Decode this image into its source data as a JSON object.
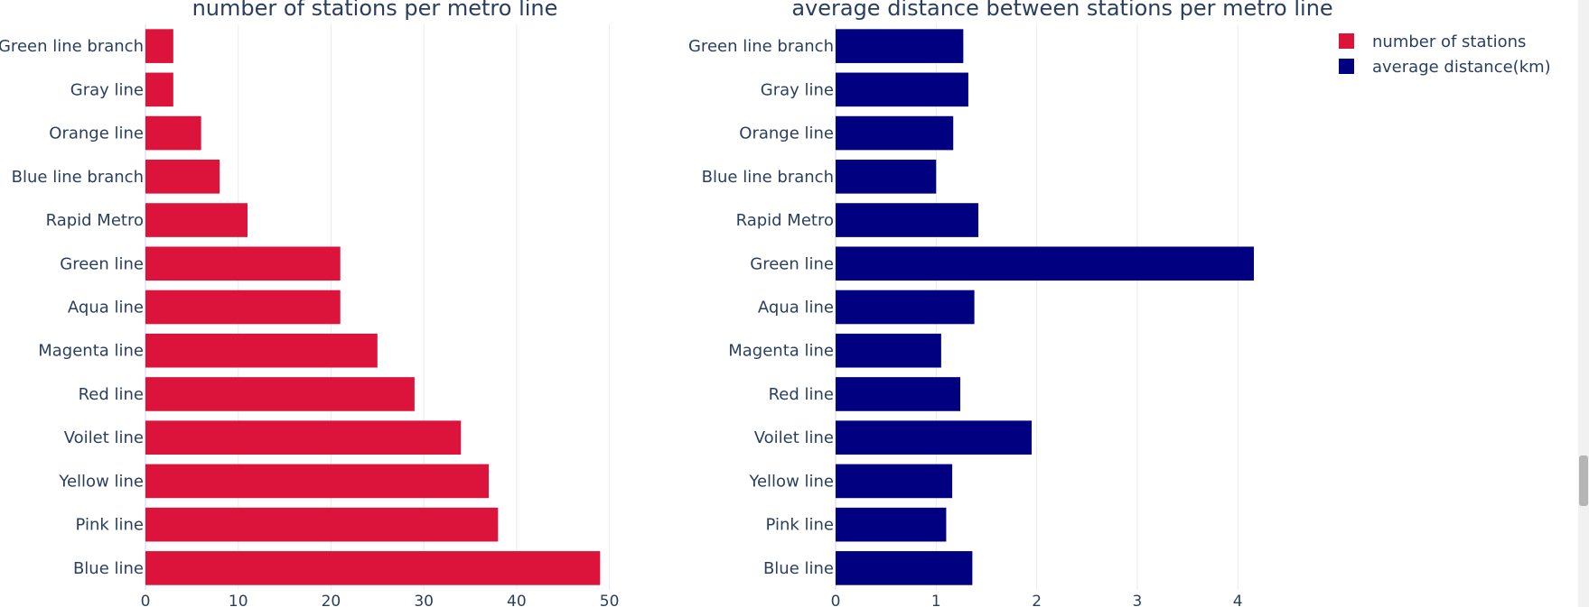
{
  "chart_data": [
    {
      "type": "bar",
      "orientation": "horizontal",
      "title": "number of stations per metro line",
      "categories": [
        "Green line branch",
        "Gray line",
        "Orange line",
        "Blue line branch",
        "Rapid Metro",
        "Green line",
        "Aqua line",
        "Magenta line",
        "Red line",
        "Voilet line",
        "Yellow line",
        "Pink line",
        "Blue line"
      ],
      "series": [
        {
          "name": "number of stations",
          "color": "#dc143c",
          "values": [
            3,
            3,
            6,
            8,
            11,
            21,
            21,
            25,
            29,
            34,
            37,
            38,
            49
          ]
        }
      ],
      "xlim": [
        0,
        51.5
      ],
      "xticks": [
        0,
        10,
        20,
        30,
        40,
        50
      ],
      "grid": true
    },
    {
      "type": "bar",
      "orientation": "horizontal",
      "title": "average distance between stations per metro line",
      "categories": [
        "Green line branch",
        "Gray line",
        "Orange line",
        "Blue line branch",
        "Rapid Metro",
        "Green line",
        "Aqua line",
        "Magenta line",
        "Red line",
        "Voilet line",
        "Yellow line",
        "Pink line",
        "Blue line"
      ],
      "series": [
        {
          "name": "average distance(km)",
          "color": "#000080",
          "values": [
            1.27,
            1.32,
            1.17,
            1.0,
            1.42,
            4.16,
            1.38,
            1.05,
            1.24,
            1.95,
            1.16,
            1.1,
            1.36
          ]
        }
      ],
      "xlim": [
        0,
        4.6
      ],
      "xticks": [
        0,
        1,
        2,
        3,
        4
      ],
      "grid": true
    }
  ],
  "legend": {
    "position": "top-right",
    "items": [
      {
        "label": "number of stations",
        "color": "#dc143c"
      },
      {
        "label": "average distance(km)",
        "color": "#000080"
      }
    ]
  }
}
